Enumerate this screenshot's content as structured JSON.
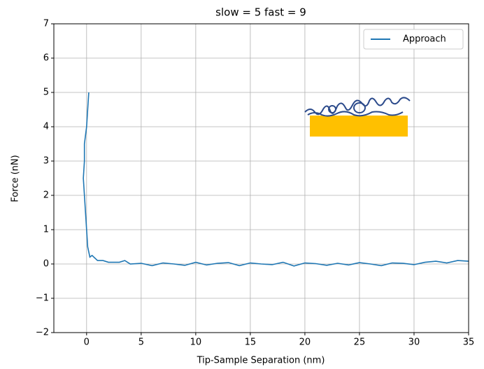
{
  "chart_data": {
    "type": "line",
    "title": "slow = 5 fast = 9",
    "x_label": "Tip-Sample Separation (nm)",
    "y_label": "Force (nN)",
    "x": [
      0.2,
      0.1,
      0,
      -0.2,
      -0.2,
      -0.3,
      -0.2,
      -0.1,
      0,
      0.1,
      0.3,
      0.5,
      1,
      1.5,
      2,
      3,
      3.5,
      4,
      5,
      6,
      7,
      8,
      9,
      10,
      11,
      12,
      13,
      14,
      15,
      16,
      17,
      18,
      19,
      20,
      21,
      22,
      23,
      24,
      25,
      26,
      27,
      28,
      29,
      30,
      31,
      32,
      33,
      34,
      35
    ],
    "series": [
      {
        "name": "Approach",
        "color": "#1f77b4",
        "values": [
          5,
          4.5,
          4,
          3.5,
          3,
          2.5,
          2,
          1.5,
          1,
          0.5,
          0.2,
          0.25,
          0.1,
          0.1,
          0.05,
          0.05,
          0.1,
          0,
          0.02,
          -0.05,
          0.03,
          0,
          -0.04,
          0.05,
          -0.03,
          0.02,
          0.04,
          -0.05,
          0.03,
          0,
          -0.02,
          0.05,
          -0.06,
          0.03,
          0.01,
          -0.04,
          0.02,
          -0.03,
          0.04,
          0,
          -0.05,
          0.03,
          0.02,
          -0.02,
          0.05,
          0.08,
          0.03,
          0.1,
          0.08
        ]
      }
    ],
    "xlim": [
      -3,
      35
    ],
    "ylim": [
      -2,
      7
    ],
    "xticks": [
      0,
      5,
      10,
      15,
      20,
      25,
      30,
      35
    ],
    "yticks": [
      {
        "value": -2,
        "label": "−2"
      },
      {
        "value": -1,
        "label": "−1"
      },
      0,
      1,
      2,
      3,
      4,
      5,
      6,
      7
    ],
    "grid": true,
    "legend": "upper right"
  }
}
